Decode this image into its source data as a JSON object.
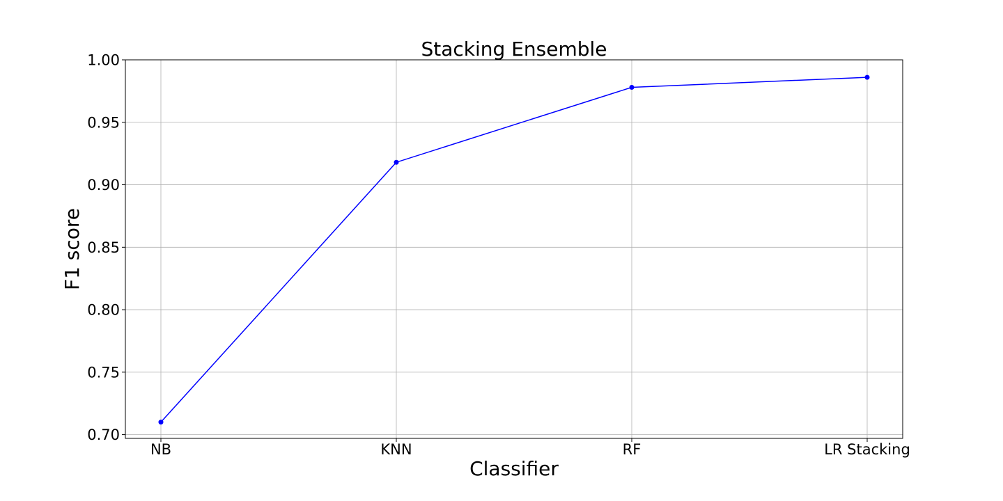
{
  "chart_data": {
    "type": "line",
    "title": "Stacking Ensemble",
    "xlabel": "Classifier",
    "ylabel": "F1 score",
    "categories": [
      "NB",
      "KNN",
      "RF",
      "LR Stacking"
    ],
    "series": [
      {
        "values": [
          0.71,
          0.918,
          0.978,
          0.986
        ],
        "color": "#0000ff",
        "marker": "circle"
      }
    ],
    "ylim": [
      0.697,
      1.0
    ],
    "yticks": [
      0.7,
      0.75,
      0.8,
      0.85,
      0.9,
      0.95,
      1.0
    ],
    "ytick_labels": [
      "0.70",
      "0.75",
      "0.80",
      "0.85",
      "0.90",
      "0.95",
      "1.00"
    ],
    "grid": true,
    "colors": {
      "grid": "#b0b0b0",
      "axes": "#000000",
      "background": "#ffffff"
    }
  }
}
